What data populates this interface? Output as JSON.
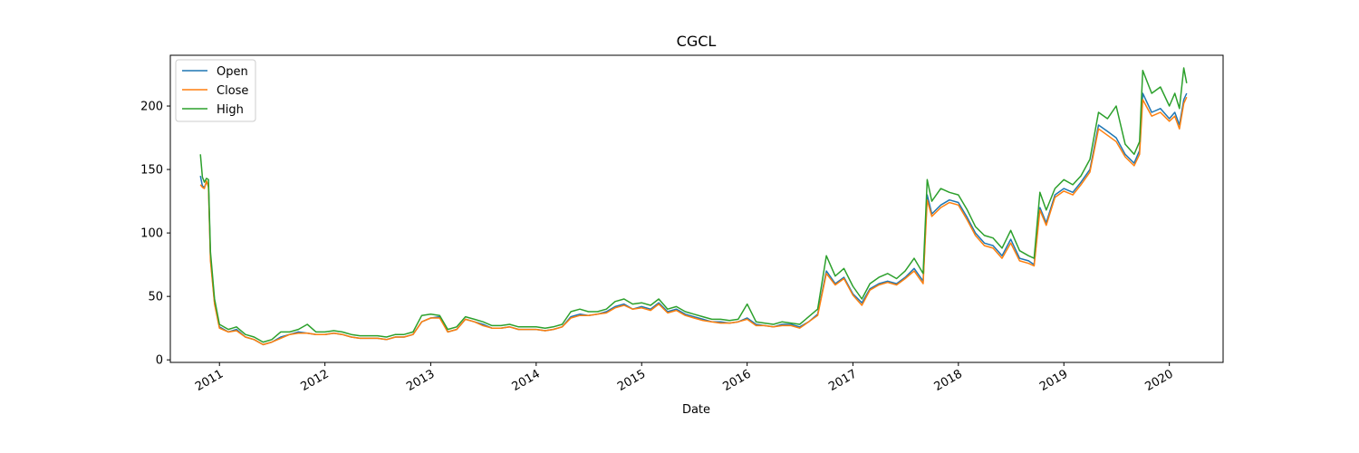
{
  "chart_data": {
    "type": "line",
    "title": "CGCL",
    "xlabel": "Date",
    "ylabel": "",
    "ylim": [
      -2,
      240
    ],
    "xlim": [
      "2010-07-15",
      "2020-07-05"
    ],
    "grid": false,
    "legend_position": "top-left",
    "x_ticks": [
      "2011-01-01",
      "2012-01-01",
      "2013-01-01",
      "2014-01-01",
      "2015-01-01",
      "2016-01-01",
      "2017-01-01",
      "2018-01-01",
      "2019-01-01",
      "2020-01-01"
    ],
    "x_tick_labels": [
      "2011",
      "2012",
      "2013",
      "2014",
      "2015",
      "2016",
      "2017",
      "2018",
      "2019",
      "2020"
    ],
    "y_ticks": [
      0,
      50,
      100,
      150,
      200
    ],
    "y_tick_labels": [
      "0",
      "50",
      "100",
      "150",
      "200"
    ],
    "series": [
      {
        "name": "Open",
        "color": "#1f77b4"
      },
      {
        "name": "Close",
        "color": "#ff7f0e"
      },
      {
        "name": "High",
        "color": "#2ca02c"
      }
    ],
    "dates": [
      "2010-10-27",
      "2010-11-03",
      "2010-11-10",
      "2010-11-17",
      "2010-11-24",
      "2010-12-01",
      "2010-12-15",
      "2011-01-01",
      "2011-02-01",
      "2011-03-01",
      "2011-04-01",
      "2011-05-01",
      "2011-06-01",
      "2011-07-01",
      "2011-08-01",
      "2011-09-01",
      "2011-10-01",
      "2011-11-01",
      "2011-12-01",
      "2012-01-01",
      "2012-02-01",
      "2012-03-01",
      "2012-04-01",
      "2012-05-01",
      "2012-06-01",
      "2012-07-01",
      "2012-08-01",
      "2012-09-01",
      "2012-10-01",
      "2012-11-01",
      "2012-12-01",
      "2013-01-01",
      "2013-02-01",
      "2013-03-01",
      "2013-04-01",
      "2013-05-01",
      "2013-06-01",
      "2013-07-01",
      "2013-08-01",
      "2013-09-01",
      "2013-10-01",
      "2013-11-01",
      "2013-12-01",
      "2014-01-01",
      "2014-02-01",
      "2014-03-01",
      "2014-04-01",
      "2014-05-01",
      "2014-06-01",
      "2014-07-01",
      "2014-08-01",
      "2014-09-01",
      "2014-10-01",
      "2014-11-01",
      "2014-12-01",
      "2015-01-01",
      "2015-02-01",
      "2015-03-01",
      "2015-04-01",
      "2015-05-01",
      "2015-06-01",
      "2015-07-01",
      "2015-08-01",
      "2015-09-01",
      "2015-10-01",
      "2015-11-01",
      "2015-12-01",
      "2016-01-01",
      "2016-02-01",
      "2016-03-01",
      "2016-04-01",
      "2016-05-01",
      "2016-06-01",
      "2016-07-01",
      "2016-08-01",
      "2016-09-01",
      "2016-10-01",
      "2016-11-01",
      "2016-12-01",
      "2017-01-01",
      "2017-02-01",
      "2017-03-01",
      "2017-04-01",
      "2017-05-01",
      "2017-06-01",
      "2017-07-01",
      "2017-08-01",
      "2017-09-01",
      "2017-09-15",
      "2017-10-01",
      "2017-11-01",
      "2017-12-01",
      "2018-01-01",
      "2018-02-01",
      "2018-03-01",
      "2018-04-01",
      "2018-05-01",
      "2018-06-01",
      "2018-07-01",
      "2018-08-01",
      "2018-09-01",
      "2018-09-20",
      "2018-10-10",
      "2018-11-01",
      "2018-12-01",
      "2019-01-01",
      "2019-02-01",
      "2019-03-01",
      "2019-04-01",
      "2019-05-01",
      "2019-06-01",
      "2019-07-01",
      "2019-08-01",
      "2019-09-01",
      "2019-09-20",
      "2019-10-01",
      "2019-11-01",
      "2019-12-01",
      "2020-01-01",
      "2020-01-20",
      "2020-02-05",
      "2020-02-20",
      "2020-03-01"
    ],
    "open": [
      145,
      137,
      136,
      140,
      138,
      80,
      45,
      26,
      22,
      24,
      18,
      16,
      12,
      14,
      18,
      20,
      22,
      21,
      20,
      20,
      21,
      20,
      18,
      17,
      17,
      17,
      16,
      18,
      18,
      20,
      30,
      33,
      34,
      22,
      24,
      32,
      30,
      28,
      25,
      25,
      26,
      24,
      24,
      24,
      23,
      24,
      26,
      34,
      36,
      35,
      36,
      38,
      42,
      44,
      40,
      42,
      40,
      45,
      38,
      40,
      36,
      34,
      32,
      30,
      30,
      29,
      30,
      33,
      28,
      27,
      26,
      28,
      28,
      26,
      30,
      36,
      70,
      60,
      65,
      52,
      45,
      56,
      60,
      62,
      60,
      65,
      72,
      62,
      130,
      115,
      122,
      126,
      124,
      112,
      100,
      92,
      90,
      82,
      95,
      80,
      78,
      75,
      120,
      108,
      130,
      135,
      132,
      140,
      150,
      185,
      180,
      175,
      162,
      155,
      165,
      210,
      195,
      198,
      190,
      195,
      185,
      205,
      210
    ],
    "close": [
      138,
      136,
      135,
      141,
      136,
      78,
      44,
      25,
      22,
      23,
      18,
      16,
      12,
      14,
      17,
      20,
      21,
      21,
      20,
      20,
      21,
      20,
      18,
      17,
      17,
      17,
      16,
      18,
      18,
      20,
      30,
      33,
      33,
      22,
      24,
      32,
      30,
      27,
      25,
      25,
      26,
      24,
      24,
      24,
      23,
      24,
      26,
      33,
      35,
      35,
      36,
      37,
      41,
      43,
      40,
      41,
      39,
      44,
      37,
      39,
      35,
      33,
      31,
      30,
      29,
      29,
      30,
      32,
      27,
      27,
      26,
      27,
      27,
      25,
      30,
      35,
      68,
      59,
      64,
      51,
      43,
      55,
      59,
      61,
      59,
      64,
      70,
      60,
      126,
      113,
      120,
      124,
      122,
      110,
      98,
      90,
      88,
      80,
      92,
      78,
      76,
      74,
      118,
      106,
      128,
      133,
      130,
      138,
      148,
      182,
      177,
      172,
      160,
      153,
      162,
      205,
      192,
      195,
      188,
      192,
      182,
      202,
      207
    ],
    "high": [
      162,
      144,
      140,
      143,
      142,
      85,
      48,
      28,
      24,
      26,
      20,
      18,
      14,
      16,
      22,
      22,
      24,
      28,
      22,
      22,
      23,
      22,
      20,
      19,
      19,
      19,
      18,
      20,
      20,
      22,
      35,
      36,
      35,
      24,
      26,
      34,
      32,
      30,
      27,
      27,
      28,
      26,
      26,
      26,
      25,
      26,
      28,
      38,
      40,
      38,
      38,
      40,
      46,
      48,
      44,
      45,
      43,
      48,
      40,
      42,
      38,
      36,
      34,
      32,
      32,
      31,
      32,
      44,
      30,
      29,
      28,
      30,
      29,
      28,
      34,
      40,
      82,
      66,
      72,
      58,
      48,
      60,
      65,
      68,
      64,
      70,
      80,
      68,
      142,
      125,
      135,
      132,
      130,
      118,
      105,
      98,
      96,
      88,
      102,
      86,
      82,
      80,
      132,
      118,
      135,
      142,
      138,
      145,
      158,
      195,
      190,
      200,
      170,
      162,
      172,
      228,
      210,
      215,
      200,
      210,
      198,
      230,
      218
    ]
  }
}
